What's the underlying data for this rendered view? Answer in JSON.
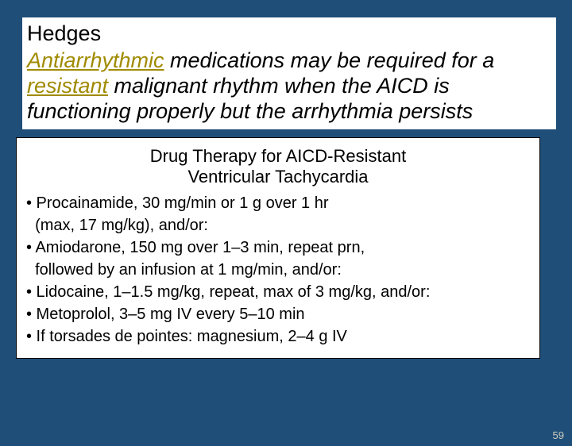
{
  "slide": {
    "title": "Hedges",
    "body_parts": {
      "p1": "Antiarrhythmic",
      "p2": " medications may be required for a ",
      "p3": "resistant",
      "p4": " malignant rhythm when the AICD is functioning properly but the arrhythmia persists"
    }
  },
  "drug_box": {
    "title_line1": "Drug Therapy for AICD-Resistant",
    "title_line2": "Ventricular Tachycardia",
    "items": {
      "i1a": "• Procainamide, 30 mg/min or 1 g over 1 hr",
      "i1b": "  (max, 17 mg/kg), and/or:",
      "i2a": "• Amiodarone, 150 mg over 1–3 min, repeat prn,",
      "i2b": "  followed by an infusion at 1 mg/min, and/or:",
      "i3": "• Lidocaine, 1–1.5 mg/kg, repeat, max of 3 mg/kg, and/or:",
      "i4": "• Metoprolol, 3–5 mg IV every 5–10 min",
      "i5": "• If torsades de pointes: magnesium, 2–4 g IV"
    }
  },
  "page_number": "59",
  "colors": {
    "background": "#1f4e79",
    "highlight": "#a08a00",
    "text": "#000000",
    "box_bg": "#ffffff"
  }
}
